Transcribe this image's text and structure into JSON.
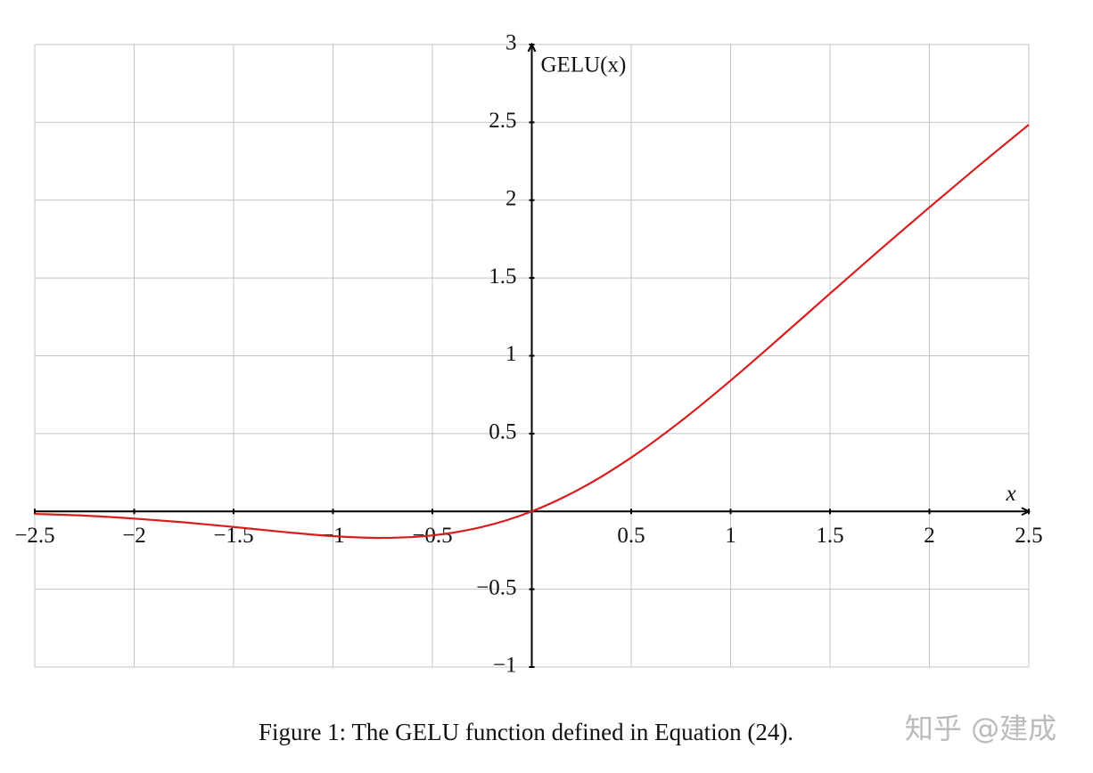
{
  "chart_data": {
    "type": "line",
    "caption": "Figure 1: The GELU function defined in Equation (24).",
    "watermark": "知乎 @建成",
    "x_label": "x",
    "y_label": "GELU(x)",
    "x": [
      -2.5,
      -2.25,
      -2,
      -1.75,
      -1.5,
      -1.25,
      -1,
      -0.75,
      -0.5,
      -0.25,
      0,
      0.25,
      0.5,
      0.75,
      1,
      1.25,
      1.5,
      1.75,
      2,
      2.25,
      2.5
    ],
    "values": [
      -0.016,
      -0.027,
      -0.046,
      -0.07,
      -0.1,
      -0.132,
      -0.159,
      -0.17,
      -0.154,
      -0.1,
      0,
      0.15,
      0.346,
      0.58,
      0.841,
      1.118,
      1.4,
      1.68,
      1.954,
      2.223,
      2.485
    ],
    "color": "#d81e1e",
    "xlim": [
      -2.5,
      2.5
    ],
    "ylim": [
      -1,
      3
    ],
    "xticks": [
      {
        "value": -2.5,
        "label": "−2.5"
      },
      {
        "value": -2,
        "label": "−2"
      },
      {
        "value": -1.5,
        "label": "−1.5"
      },
      {
        "value": -1,
        "label": "−1"
      },
      {
        "value": -0.5,
        "label": "−0.5"
      },
      0.5,
      1,
      1.5,
      2,
      2.5
    ],
    "yticks": [
      {
        "value": -1,
        "label": "−1"
      },
      {
        "value": -0.5,
        "label": "−0.5"
      },
      0.5,
      1,
      1.5,
      2,
      2.5,
      3
    ],
    "grid": true
  }
}
